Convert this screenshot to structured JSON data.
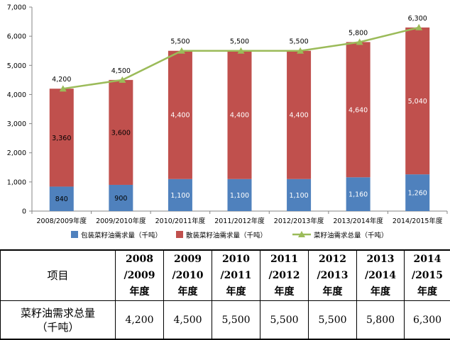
{
  "chart_data": {
    "type": "bar",
    "stacked": true,
    "categories": [
      "2008/2009年度",
      "2009/2010年度",
      "2010/2011年度",
      "2011/2012年度",
      "2012/2013年度",
      "2013/2014年度",
      "2014/2015年度"
    ],
    "series": [
      {
        "name": "包装菜籽油需求量（千吨）",
        "type": "bar",
        "color": "#4f81bd",
        "values": [
          840,
          900,
          1100,
          1100,
          1100,
          1160,
          1260
        ],
        "labels": [
          "840",
          "900",
          "1,100",
          "1,100",
          "1,100",
          "1,160",
          "1,260"
        ]
      },
      {
        "name": "散装菜籽油需求量（千吨）",
        "type": "bar",
        "color": "#c0504d",
        "values": [
          3360,
          3600,
          4400,
          4400,
          4400,
          4640,
          5040
        ],
        "labels": [
          "3,360",
          "3,600",
          "4,400",
          "4,400",
          "4,400",
          "4,640",
          "5,040"
        ]
      },
      {
        "name": "菜籽油需求总量（千吨）",
        "type": "line",
        "color": "#9bbb59",
        "values": [
          4200,
          4500,
          5500,
          5500,
          5500,
          5800,
          6300
        ],
        "labels": [
          "4,200",
          "4,500",
          "5,500",
          "5,500",
          "5,500",
          "5,800",
          "6,300"
        ]
      }
    ],
    "ylim": [
      0,
      7000
    ],
    "yticks": [
      0,
      1000,
      2000,
      3000,
      4000,
      5000,
      6000,
      7000
    ],
    "ytick_labels": [
      "0",
      "1,000",
      "2,000",
      "3,000",
      "4,000",
      "5,000",
      "6,000",
      "7,000"
    ],
    "legend_position": "bottom",
    "grid": false
  },
  "table": {
    "header_label": "项目",
    "columns": [
      [
        "2008",
        "/2009",
        "年度"
      ],
      [
        "2009",
        "/2010",
        "年度"
      ],
      [
        "2010",
        "/2011",
        "年度"
      ],
      [
        "2011",
        "/2012",
        "年度"
      ],
      [
        "2012",
        "/2013",
        "年度"
      ],
      [
        "2013",
        "/2014",
        "年度"
      ],
      [
        "2014",
        "/2015",
        "年度"
      ]
    ],
    "row_label": [
      "菜籽油需求总量",
      "（千吨）"
    ],
    "row_values": [
      "4,200",
      "4,500",
      "5,500",
      "5,500",
      "5,500",
      "5,800",
      "6,300"
    ]
  }
}
